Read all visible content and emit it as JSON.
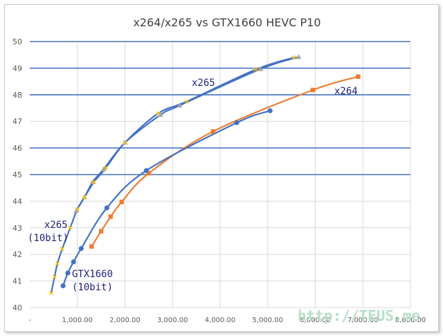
{
  "watermark": "http://TEUS.me",
  "chart_data": {
    "type": "line",
    "title": "x264/x265 vs GTX1660 HEVC P10",
    "xlabel": "",
    "ylabel": "",
    "xlim": [
      0,
      8000
    ],
    "ylim": [
      40,
      50
    ],
    "x_ticks": [
      0,
      1000,
      2000,
      3000,
      4000,
      5000,
      6000,
      7000,
      8000
    ],
    "x_tick_labels": [
      "-",
      "1,000.00",
      "2,000.00",
      "3,000.00",
      "4,000.00",
      "5,000.00",
      "6,000.00",
      "7,000.00",
      "8,000.00"
    ],
    "y_ticks": [
      40,
      41,
      42,
      43,
      44,
      45,
      46,
      47,
      48,
      49,
      50
    ],
    "grid": {
      "major_y_highlight": [
        45,
        46,
        48,
        49,
        50
      ],
      "vertical": true
    },
    "series": [
      {
        "name": "x265",
        "color": "#4472c4",
        "marker": "triangle",
        "marker_color": "#a5a5a5",
        "points": [
          [
            980,
            43.65
          ],
          [
            1150,
            44.15
          ],
          [
            1320,
            44.72
          ],
          [
            1550,
            45.2
          ],
          [
            2000,
            46.2
          ],
          [
            2750,
            47.25
          ],
          [
            3150,
            47.6
          ],
          [
            4850,
            48.97
          ],
          [
            5650,
            49.42
          ]
        ]
      },
      {
        "name": "x264",
        "color": "#ed7d31",
        "marker": "square",
        "marker_color": "#ed7d31",
        "points": [
          [
            1300,
            42.3
          ],
          [
            1500,
            42.87
          ],
          [
            1700,
            43.42
          ],
          [
            1930,
            43.97
          ],
          [
            2500,
            45.05
          ],
          [
            3850,
            46.62
          ],
          [
            5950,
            48.18
          ],
          [
            6900,
            48.68
          ]
        ]
      },
      {
        "name": "x265 (10bit)",
        "color": "#4472c4",
        "marker": "x",
        "marker_color": "#ffc000",
        "points": [
          [
            450,
            40.55
          ],
          [
            520,
            41.15
          ],
          [
            580,
            41.65
          ],
          [
            680,
            42.2
          ],
          [
            850,
            43.0
          ],
          [
            1000,
            43.7
          ],
          [
            1150,
            44.15
          ],
          [
            1350,
            44.72
          ],
          [
            1600,
            45.25
          ],
          [
            2000,
            46.2
          ],
          [
            2700,
            47.3
          ],
          [
            3300,
            47.75
          ],
          [
            4750,
            48.95
          ],
          [
            5550,
            49.4
          ]
        ]
      },
      {
        "name": "GTX1660 (10bit)",
        "color": "#4472c4",
        "marker": "circle",
        "marker_color": "#4472c4",
        "points": [
          [
            700,
            40.82
          ],
          [
            800,
            41.3
          ],
          [
            920,
            41.72
          ],
          [
            1080,
            42.22
          ],
          [
            1620,
            43.75
          ],
          [
            2450,
            45.15
          ],
          [
            4350,
            46.95
          ],
          [
            5050,
            47.4
          ]
        ]
      }
    ],
    "labels": [
      {
        "text": "x265",
        "series": "x265"
      },
      {
        "text": "x264",
        "series": "x264"
      },
      {
        "text": "x265",
        "series": "x265 (10bit)"
      },
      {
        "text": "(10bit)",
        "series": "x265 (10bit)"
      },
      {
        "text": "GTX1660",
        "series": "GTX1660 (10bit)"
      },
      {
        "text": "(10bit)",
        "series": "GTX1660 (10bit)"
      }
    ]
  }
}
